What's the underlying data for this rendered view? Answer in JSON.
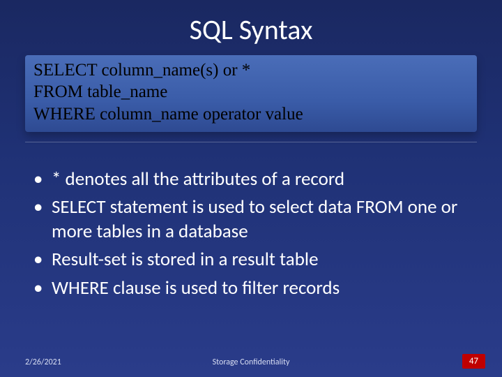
{
  "slide": {
    "title": "SQL Syntax",
    "background_gradient": [
      "#1a2861",
      "#1f3175",
      "#2a3c8a"
    ],
    "title_color": "#ffffff",
    "title_fontsize": 40
  },
  "code_box": {
    "lines": [
      "SELECT  column_name(s) or *",
      "FROM table_name",
      "WHERE column_name operator value"
    ],
    "background_gradient": [
      "#4a6db8",
      "#3a5ca8",
      "#2e4a92"
    ],
    "text_color": "#000000",
    "font_family": "Times New Roman",
    "fontsize": 25
  },
  "bullets": {
    "items": [
      "* denotes all the attributes of a record",
      "SELECT statement is used to select data FROM one or more tables in a database",
      "Result-set is stored in a result table",
      "WHERE clause is used to filter records"
    ],
    "text_color": "#ffffff",
    "fontsize": 27
  },
  "footer": {
    "date": "2/26/2021",
    "center": "Storage Confidentiality",
    "page": "47",
    "text_color": "#d7ddf2",
    "page_badge_bg": "#c00000",
    "page_badge_color": "#ffffff",
    "fontsize": 12
  }
}
